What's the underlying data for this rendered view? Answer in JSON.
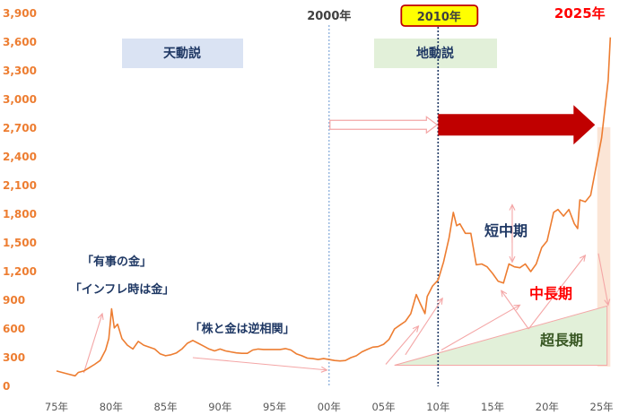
{
  "chart_data": {
    "type": "line",
    "title": "",
    "xlabel": "",
    "ylabel": "",
    "x_ticks": [
      "75年",
      "80年",
      "85年",
      "90年",
      "95年",
      "00年",
      "05年",
      "10年",
      "15年",
      "20年",
      "25年"
    ],
    "y_ticks": [
      "0",
      "300",
      "600",
      "900",
      "1,200",
      "1,500",
      "1,800",
      "2,100",
      "2,400",
      "2,700",
      "3,000",
      "3,300",
      "3,600",
      "3,900"
    ],
    "ylim": [
      0,
      3900
    ],
    "xlim": [
      1975,
      2026
    ],
    "grid": false,
    "series": [
      {
        "name": "",
        "color": "#ED7D31",
        "x": [
          1975,
          1976,
          1976.7,
          1977,
          1977.5,
          1978,
          1978.5,
          1979,
          1979.5,
          1979.8,
          1980.05,
          1980.3,
          1980.6,
          1981,
          1981.5,
          1982,
          1982.5,
          1983,
          1983.5,
          1984,
          1984.5,
          1985,
          1985.5,
          1986,
          1986.5,
          1987,
          1987.5,
          1988,
          1988.5,
          1989,
          1989.5,
          1990,
          1990.5,
          1991,
          1991.5,
          1992,
          1992.5,
          1993,
          1993.5,
          1994,
          1994.5,
          1995,
          1995.5,
          1996,
          1996.5,
          1997,
          1997.5,
          1998,
          1998.5,
          1999,
          1999.5,
          2000,
          2000.5,
          2001,
          2001.5,
          2002,
          2002.5,
          2003,
          2003.5,
          2004,
          2004.5,
          2005,
          2005.5,
          2006,
          2006.5,
          2007,
          2007.5,
          2008,
          2008.3,
          2008.8,
          2009,
          2009.5,
          2010,
          2010.5,
          2011,
          2011.4,
          2011.7,
          2012,
          2012.5,
          2013,
          2013.5,
          2014,
          2014.5,
          2015,
          2015.5,
          2016,
          2016.5,
          2017,
          2017.5,
          2018,
          2018.5,
          2019,
          2019.5,
          2020,
          2020.6,
          2021,
          2021.5,
          2022,
          2022.5,
          2022.8,
          2023,
          2023.5,
          2024,
          2024.5,
          2025,
          2025.3,
          2025.6,
          2025.8
        ],
        "y": [
          160,
          130,
          110,
          145,
          160,
          195,
          230,
          270,
          380,
          500,
          810,
          610,
          650,
          500,
          430,
          390,
          470,
          430,
          410,
          390,
          340,
          320,
          330,
          350,
          390,
          450,
          480,
          450,
          420,
          390,
          370,
          390,
          370,
          360,
          350,
          345,
          345,
          380,
          390,
          385,
          385,
          385,
          385,
          395,
          380,
          340,
          320,
          295,
          290,
          280,
          290,
          280,
          270,
          265,
          270,
          300,
          320,
          360,
          385,
          410,
          415,
          440,
          490,
          600,
          640,
          680,
          760,
          960,
          880,
          760,
          940,
          1050,
          1110,
          1300,
          1550,
          1820,
          1680,
          1700,
          1600,
          1600,
          1270,
          1280,
          1250,
          1180,
          1100,
          1080,
          1280,
          1250,
          1240,
          1280,
          1200,
          1280,
          1450,
          1520,
          1820,
          1850,
          1780,
          1850,
          1700,
          1650,
          1950,
          1930,
          2000,
          2300,
          2600,
          2900,
          3200,
          3650
        ]
      }
    ],
    "annotations": {
      "tendousetsu": "天動説",
      "chidousetsu": "地動説",
      "year_2000": "2000年",
      "year_2010": "2010年",
      "year_2025": "2025年",
      "yuji": "「有事の金」",
      "inflation": "「インフレ時は金」",
      "kabu": "「株と金は逆相関」",
      "tanchuki": "短中期",
      "chuchoki": "中長期",
      "chochoki": "超長期"
    },
    "colors": {
      "line": "#ED7D31",
      "blue_label": "#1F3864",
      "red_label": "#FF0000",
      "green_label": "#385723",
      "big_arrow": "#C00000",
      "year_badge_fill": "#FFFF00",
      "year_badge_border": "#C00000",
      "tendousetsu_box": "#DAE3F3",
      "chidousetsu_box": "#E2F0D9",
      "triangle_fill": "#E2F0D9",
      "highlight_band": "#FBE5D6",
      "thin_arrows": "#F4A6A6"
    }
  }
}
